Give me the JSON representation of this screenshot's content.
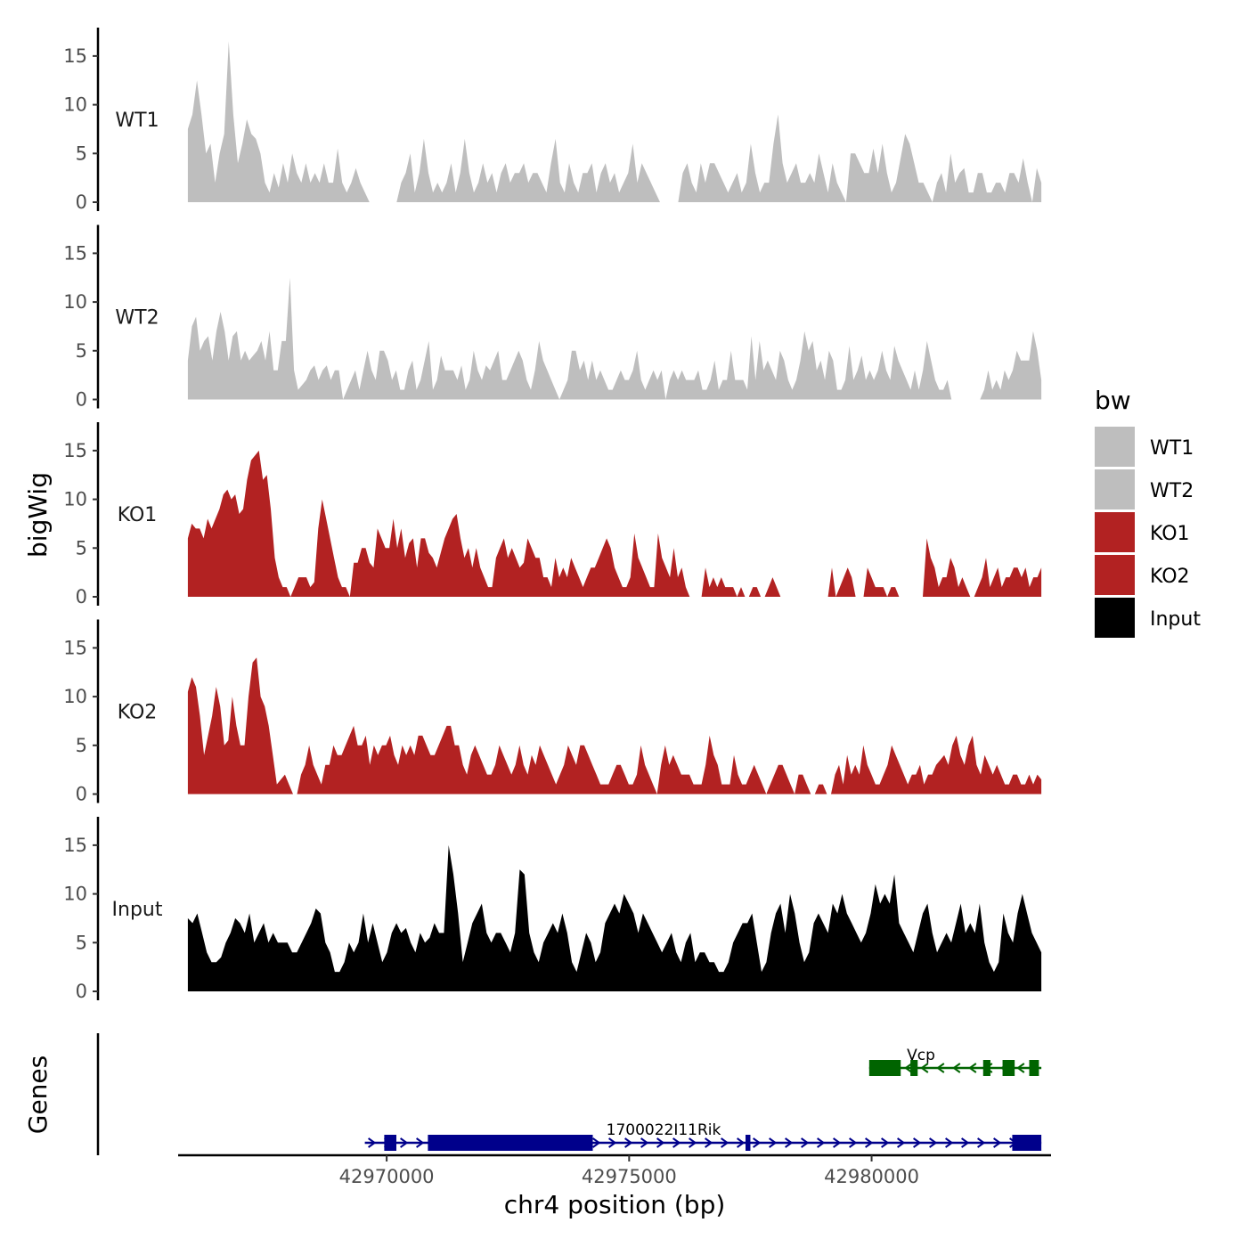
{
  "chart_data": {
    "type": "area",
    "ylabel": "bigWig",
    "genes_label": "Genes",
    "xlabel": "chr4 position (bp)",
    "xlim": [
      42965700,
      42983700
    ],
    "ylim": [
      0,
      17
    ],
    "yticks": [
      0,
      5,
      10,
      15
    ],
    "ytick_labels": [
      "0",
      "5",
      "10",
      "15"
    ],
    "xticks": [
      42970000,
      42975000,
      42980000
    ],
    "xtick_labels": [
      "42970000",
      "42975000",
      "42980000"
    ],
    "legend": {
      "title": "bw",
      "position": "right",
      "entries": [
        {
          "label": "WT1",
          "color": "#bebebe"
        },
        {
          "label": "WT2",
          "color": "#bebebe"
        },
        {
          "label": "KO1",
          "color": "#b22222"
        },
        {
          "label": "KO2",
          "color": "#b22222"
        },
        {
          "label": "Input",
          "color": "#000000"
        }
      ]
    },
    "x_start": 42965900,
    "x_end": 42983500,
    "series": [
      {
        "name": "WT1",
        "color": "#bebebe",
        "values": [
          7.5,
          9,
          12.5,
          9,
          5,
          6,
          2,
          5,
          7,
          16.5,
          9,
          4,
          6,
          8.5,
          7,
          6.5,
          5,
          2,
          1,
          3,
          1.5,
          4,
          2,
          5,
          3,
          2,
          4,
          2,
          3,
          2,
          4,
          2,
          2,
          5.5,
          2,
          1,
          2,
          3.5,
          2,
          1,
          0,
          0,
          0,
          0,
          0,
          0,
          0,
          2,
          3,
          5,
          1,
          3,
          6.5,
          3,
          1,
          2,
          1,
          2,
          4,
          1,
          3,
          6.5,
          3,
          1,
          2,
          4,
          2,
          3,
          1,
          3,
          4,
          2,
          3,
          3,
          4,
          2,
          3,
          3,
          2,
          1,
          4,
          6.5,
          2,
          1,
          4,
          2,
          1,
          3,
          3,
          4,
          1,
          3,
          4,
          2,
          3,
          1,
          2,
          3,
          6,
          2,
          4,
          3,
          2,
          1,
          0,
          0,
          0,
          0,
          0,
          3,
          4,
          2,
          1,
          4,
          2,
          4,
          4,
          3,
          2,
          1,
          2,
          3,
          1,
          2,
          6,
          3,
          1,
          2,
          2,
          6,
          9,
          4,
          2,
          3,
          4,
          2,
          2,
          3,
          2,
          5,
          3,
          1,
          4,
          2,
          1,
          0,
          5,
          5,
          4,
          3,
          3,
          5.5,
          3,
          6,
          3,
          1,
          2,
          4.5,
          7,
          6,
          4,
          2,
          2,
          1,
          0,
          2,
          3,
          1,
          5,
          2,
          3,
          3.5,
          1,
          1,
          3,
          3,
          1,
          1,
          2,
          2,
          1,
          3,
          3,
          2,
          4.5,
          2,
          0,
          3.5,
          2
        ]
      },
      {
        "name": "WT2",
        "color": "#bebebe",
        "values": [
          4,
          7.5,
          8.5,
          5,
          6,
          6.5,
          4,
          7,
          9,
          7,
          4,
          6.5,
          7,
          4,
          5,
          4,
          4.5,
          5,
          6,
          4,
          7,
          3,
          3,
          6,
          6,
          12.5,
          3,
          1,
          1.5,
          2,
          3,
          3.5,
          2,
          3,
          3.5,
          2,
          3,
          3,
          0,
          1,
          2,
          3,
          1,
          3,
          5,
          3,
          2,
          5,
          5,
          4,
          2,
          3,
          1,
          1,
          3,
          4,
          1,
          2,
          4,
          6,
          1,
          2,
          4.5,
          3,
          3,
          3,
          2,
          3.5,
          1,
          2,
          5,
          3,
          2,
          3.5,
          3,
          4,
          5,
          2,
          2,
          3,
          4,
          5,
          4,
          2,
          1,
          3,
          6,
          4,
          3,
          2,
          1,
          0,
          1,
          2,
          5,
          5,
          3,
          4,
          2,
          4,
          2,
          3,
          2,
          1,
          1,
          2,
          3,
          2,
          2,
          3,
          5,
          2,
          1,
          2,
          3,
          2,
          3,
          0,
          2,
          3,
          2,
          3,
          2,
          2,
          2,
          3,
          1,
          1,
          2,
          4,
          1,
          2,
          2,
          5,
          2,
          2,
          2,
          1,
          6.5,
          2,
          6,
          3,
          4,
          3,
          2,
          5,
          4,
          2,
          1,
          2,
          4,
          7,
          5,
          6,
          3,
          4,
          2,
          5,
          4,
          1,
          1,
          2,
          5.5,
          2,
          3,
          4.5,
          2,
          3,
          2,
          3,
          5,
          3,
          2,
          5.5,
          4,
          3,
          2,
          1,
          3,
          1,
          3,
          6,
          4,
          2,
          1,
          1,
          2,
          0,
          0,
          0,
          0,
          0,
          0,
          0,
          0,
          1,
          3,
          1,
          2,
          1,
          3,
          2,
          3,
          5,
          4,
          4,
          4,
          7,
          5,
          2
        ]
      },
      {
        "name": "KO1",
        "color": "#b22222",
        "values": [
          6,
          7.5,
          7,
          7,
          6,
          8,
          7,
          8,
          9,
          10.5,
          11,
          10,
          10.5,
          8.5,
          9,
          12,
          14,
          14.5,
          15,
          12,
          12.5,
          9,
          4,
          2,
          1,
          1,
          0,
          1,
          2,
          2,
          2,
          1,
          1.5,
          7,
          10,
          8,
          6,
          4,
          2,
          1,
          1,
          0,
          3.5,
          3.5,
          5,
          5,
          3.5,
          3,
          7,
          6,
          5,
          5,
          8,
          5,
          7,
          4,
          5.5,
          6,
          3,
          6,
          6,
          4.5,
          4,
          3,
          4.5,
          6,
          7,
          8,
          8.5,
          6,
          4,
          5,
          3,
          5,
          3,
          2,
          1,
          1,
          4,
          5,
          6,
          4,
          5,
          4,
          3,
          3.5,
          6,
          5,
          4,
          4,
          2,
          2,
          1,
          4,
          2,
          3,
          2,
          4,
          3,
          2,
          1,
          2,
          3,
          3,
          4,
          5,
          6,
          5,
          3,
          2,
          1,
          1,
          2,
          6.5,
          4,
          3,
          2,
          1,
          1,
          6.5,
          4,
          3,
          2,
          5,
          2,
          3,
          1,
          0,
          0,
          0,
          0,
          3,
          1,
          2,
          1,
          2,
          1,
          1,
          1,
          0,
          1,
          0,
          0,
          1,
          1,
          0,
          0,
          1,
          2,
          1,
          0,
          0,
          0,
          0,
          0,
          0,
          0,
          0,
          0,
          0,
          0,
          0,
          0,
          3,
          0,
          1,
          2,
          3,
          2,
          0,
          0,
          0,
          3,
          2,
          1,
          1,
          1,
          0,
          1,
          1,
          0,
          0,
          0,
          0,
          0,
          0,
          0,
          6,
          4,
          3,
          1,
          2,
          2,
          4,
          3,
          1,
          2,
          1,
          0,
          0,
          1,
          2,
          4,
          1,
          2,
          3,
          1,
          2,
          2,
          3,
          3,
          2,
          3,
          1,
          2,
          2,
          3
        ]
      },
      {
        "name": "KO2",
        "color": "#b22222",
        "values": [
          10.5,
          12,
          11,
          8,
          4,
          6,
          8,
          11,
          9,
          5,
          5.5,
          10,
          7,
          5,
          5,
          10,
          13.5,
          14,
          10,
          9,
          7,
          4,
          1,
          1.5,
          2,
          1,
          0,
          0,
          2,
          3,
          5,
          3,
          2,
          1,
          3,
          3,
          5,
          4,
          4,
          5,
          6,
          7,
          5,
          5,
          6,
          3,
          5,
          4,
          5,
          5,
          6,
          4,
          3,
          5,
          4,
          5,
          4,
          6,
          6,
          5,
          4,
          4,
          5,
          6,
          7,
          7,
          5,
          5,
          3,
          2,
          4,
          5,
          4,
          3,
          2,
          2,
          3,
          5,
          4,
          3,
          2,
          3,
          5,
          3,
          2,
          4,
          3,
          5,
          4,
          3,
          2,
          1,
          2,
          3,
          5,
          4,
          3,
          5,
          5,
          4,
          3,
          2,
          1,
          1,
          1,
          2,
          3,
          3,
          2,
          1,
          1,
          2,
          5,
          3,
          2,
          1,
          0,
          3,
          5,
          3,
          4,
          3,
          2,
          2,
          2,
          1,
          1,
          1,
          3,
          6,
          4,
          3,
          1,
          1,
          1,
          4,
          2,
          1,
          1,
          2,
          3,
          2,
          1,
          0,
          1,
          2,
          3,
          3,
          2,
          1,
          0,
          2,
          2,
          1,
          0,
          0,
          1,
          1,
          0,
          0,
          2,
          3,
          1,
          4,
          2,
          3,
          2,
          5,
          3,
          2,
          1,
          1,
          2,
          3,
          5,
          4,
          3,
          2,
          1,
          2,
          2,
          3,
          1,
          2,
          2,
          3,
          3.5,
          4,
          3,
          5,
          6,
          4,
          3,
          5,
          6,
          3,
          2,
          4,
          3,
          2,
          3,
          2,
          1,
          1,
          2,
          2,
          1,
          1,
          2,
          1,
          2,
          1.5
        ]
      },
      {
        "name": "Input",
        "color": "#000000",
        "values": [
          7.5,
          7,
          8,
          6,
          4,
          3,
          3,
          3.5,
          5,
          6,
          7.5,
          7,
          6,
          8,
          5,
          6,
          7,
          5,
          6,
          5,
          5,
          5,
          4,
          4,
          5,
          6,
          7,
          8.5,
          8,
          5,
          4,
          2,
          2,
          3,
          5,
          4,
          5,
          8,
          5,
          7,
          5,
          3,
          4,
          6,
          7,
          6,
          6.5,
          5,
          4,
          6,
          5,
          5.5,
          7,
          6,
          6,
          15,
          12,
          8,
          3,
          5,
          7,
          8,
          9,
          6,
          5,
          6,
          6,
          5,
          4,
          6,
          12.5,
          12,
          6,
          4,
          3,
          5,
          6,
          7,
          6,
          8,
          6,
          3,
          2,
          4,
          6,
          5,
          3,
          4,
          7,
          8,
          9,
          8,
          10,
          9,
          8,
          6,
          8,
          7,
          6,
          5,
          4,
          5,
          6,
          4,
          3,
          5,
          6,
          3,
          4,
          4,
          3,
          3,
          2,
          2,
          3,
          5,
          6,
          7,
          7,
          8,
          5,
          2,
          3,
          6,
          8,
          9,
          6,
          10,
          8,
          5,
          3,
          4,
          7,
          8,
          7,
          6,
          9,
          8,
          10,
          8,
          7,
          6,
          5,
          6,
          8,
          11,
          9,
          10,
          9,
          12,
          7,
          6,
          5,
          4,
          6,
          8,
          9,
          6,
          4,
          5,
          6,
          5,
          7,
          9,
          6,
          7,
          6,
          9,
          5,
          3,
          2,
          3,
          8,
          6,
          5,
          8,
          10,
          8,
          6,
          5,
          4
        ]
      }
    ],
    "genes": [
      {
        "name": "1700022I11Rik",
        "strand": "+",
        "color": "#00008b",
        "start": 42969550,
        "end": 42983500,
        "exons": [
          [
            42969950,
            42970200
          ],
          [
            42970850,
            42974250
          ],
          [
            42977400,
            42977500
          ],
          [
            42982900,
            42983500
          ]
        ]
      },
      {
        "name": "Vcp",
        "strand": "-",
        "color": "#006400",
        "start": 42979950,
        "end": 42983500,
        "exons": [
          [
            42979950,
            42980600
          ],
          [
            42980800,
            42980950
          ],
          [
            42982300,
            42982450
          ],
          [
            42982700,
            42982950
          ],
          [
            42983250,
            42983450
          ]
        ]
      }
    ]
  }
}
